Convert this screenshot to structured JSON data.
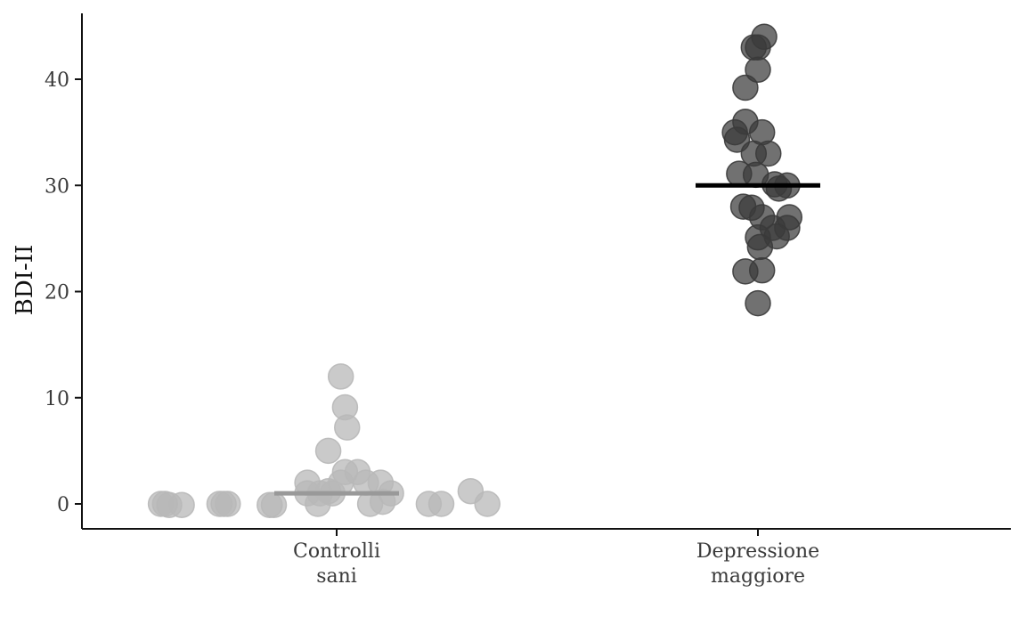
{
  "chart_data": {
    "type": "scatter",
    "ylabel": "BDI-II",
    "xlabel": "",
    "ylim": [
      -2.3,
      46
    ],
    "yticks": [
      0,
      10,
      20,
      30,
      40
    ],
    "ytick_labels": [
      "0",
      "10",
      "20",
      "30",
      "40"
    ],
    "grid": false,
    "legend": "none",
    "categories": [
      {
        "label_lines": [
          "Controlli",
          "sani"
        ]
      },
      {
        "label_lines": [
          "Depressione",
          "maggiore"
        ]
      }
    ],
    "series": [
      {
        "category_index": 0,
        "color": "#b8b8b8",
        "median_color": "#999999",
        "median": 1,
        "points": [
          {
            "jitter": -0.42,
            "y": 0
          },
          {
            "jitter": -0.41,
            "y": 0
          },
          {
            "jitter": -0.4,
            "y": -0.1
          },
          {
            "jitter": -0.37,
            "y": -0.1
          },
          {
            "jitter": -0.28,
            "y": 0
          },
          {
            "jitter": -0.27,
            "y": 0
          },
          {
            "jitter": -0.26,
            "y": 0
          },
          {
            "jitter": -0.16,
            "y": -0.1
          },
          {
            "jitter": -0.15,
            "y": -0.1
          },
          {
            "jitter": -0.07,
            "y": 2
          },
          {
            "jitter": -0.07,
            "y": 1
          },
          {
            "jitter": -0.04,
            "y": 1
          },
          {
            "jitter": -0.045,
            "y": 0
          },
          {
            "jitter": -0.02,
            "y": 1.2
          },
          {
            "jitter": -0.01,
            "y": 1
          },
          {
            "jitter": -0.02,
            "y": 5
          },
          {
            "jitter": 0.01,
            "y": 2
          },
          {
            "jitter": 0.01,
            "y": 12
          },
          {
            "jitter": 0.02,
            "y": 9.1
          },
          {
            "jitter": 0.02,
            "y": 3
          },
          {
            "jitter": 0.025,
            "y": 7.2
          },
          {
            "jitter": 0.05,
            "y": 3
          },
          {
            "jitter": 0.07,
            "y": 2
          },
          {
            "jitter": 0.08,
            "y": 0
          },
          {
            "jitter": 0.105,
            "y": 2
          },
          {
            "jitter": 0.11,
            "y": 0.2
          },
          {
            "jitter": 0.13,
            "y": 1
          },
          {
            "jitter": 0.22,
            "y": 0
          },
          {
            "jitter": 0.25,
            "y": 0
          },
          {
            "jitter": 0.32,
            "y": 1.2
          },
          {
            "jitter": 0.36,
            "y": 0
          }
        ]
      },
      {
        "category_index": 1,
        "color": "#3a3a3a",
        "median_color": "#000000",
        "median": 30,
        "points": [
          {
            "jitter": 0.015,
            "y": 44
          },
          {
            "jitter": -0.01,
            "y": 43
          },
          {
            "jitter": 0.0,
            "y": 43
          },
          {
            "jitter": 0.0,
            "y": 40.9
          },
          {
            "jitter": -0.03,
            "y": 39.2
          },
          {
            "jitter": -0.03,
            "y": 36
          },
          {
            "jitter": -0.055,
            "y": 35
          },
          {
            "jitter": 0.01,
            "y": 35
          },
          {
            "jitter": -0.05,
            "y": 34.3
          },
          {
            "jitter": 0.025,
            "y": 33
          },
          {
            "jitter": -0.01,
            "y": 33
          },
          {
            "jitter": -0.045,
            "y": 31.1
          },
          {
            "jitter": -0.005,
            "y": 31
          },
          {
            "jitter": 0.07,
            "y": 30
          },
          {
            "jitter": 0.04,
            "y": 30.1
          },
          {
            "jitter": 0.05,
            "y": 29.7
          },
          {
            "jitter": -0.035,
            "y": 28
          },
          {
            "jitter": -0.015,
            "y": 27.9
          },
          {
            "jitter": 0.075,
            "y": 27
          },
          {
            "jitter": 0.01,
            "y": 27
          },
          {
            "jitter": 0.035,
            "y": 26
          },
          {
            "jitter": 0.07,
            "y": 26
          },
          {
            "jitter": 0.045,
            "y": 25.2
          },
          {
            "jitter": 0.0,
            "y": 25.1
          },
          {
            "jitter": 0.005,
            "y": 24.2
          },
          {
            "jitter": 0.01,
            "y": 22
          },
          {
            "jitter": -0.03,
            "y": 21.9
          },
          {
            "jitter": 0.0,
            "y": 18.9
          }
        ]
      }
    ]
  }
}
